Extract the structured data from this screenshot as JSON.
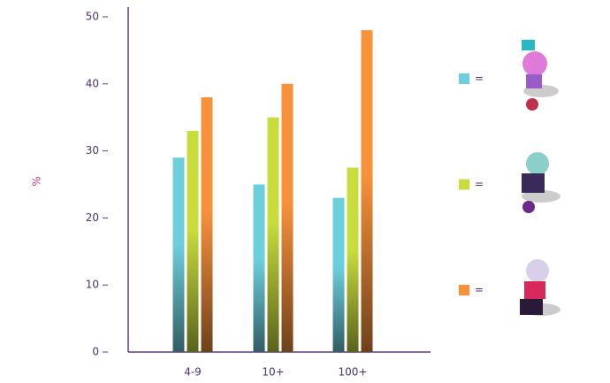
{
  "chart_data": {
    "type": "bar",
    "y_label": "%",
    "categories": [
      "4-9",
      "10+",
      "100+"
    ],
    "series": [
      {
        "color": "#6ccfdc",
        "values": [
          29,
          25,
          23
        ]
      },
      {
        "color": "#c8dc3c",
        "values": [
          33,
          35,
          27.5
        ]
      },
      {
        "color": "#f7913a",
        "values": [
          38,
          40,
          48
        ]
      }
    ],
    "legend_separator": "=",
    "ylim": [
      0,
      50
    ],
    "yticks": [
      0,
      10,
      20,
      30,
      40,
      50
    ],
    "grid": false
  }
}
